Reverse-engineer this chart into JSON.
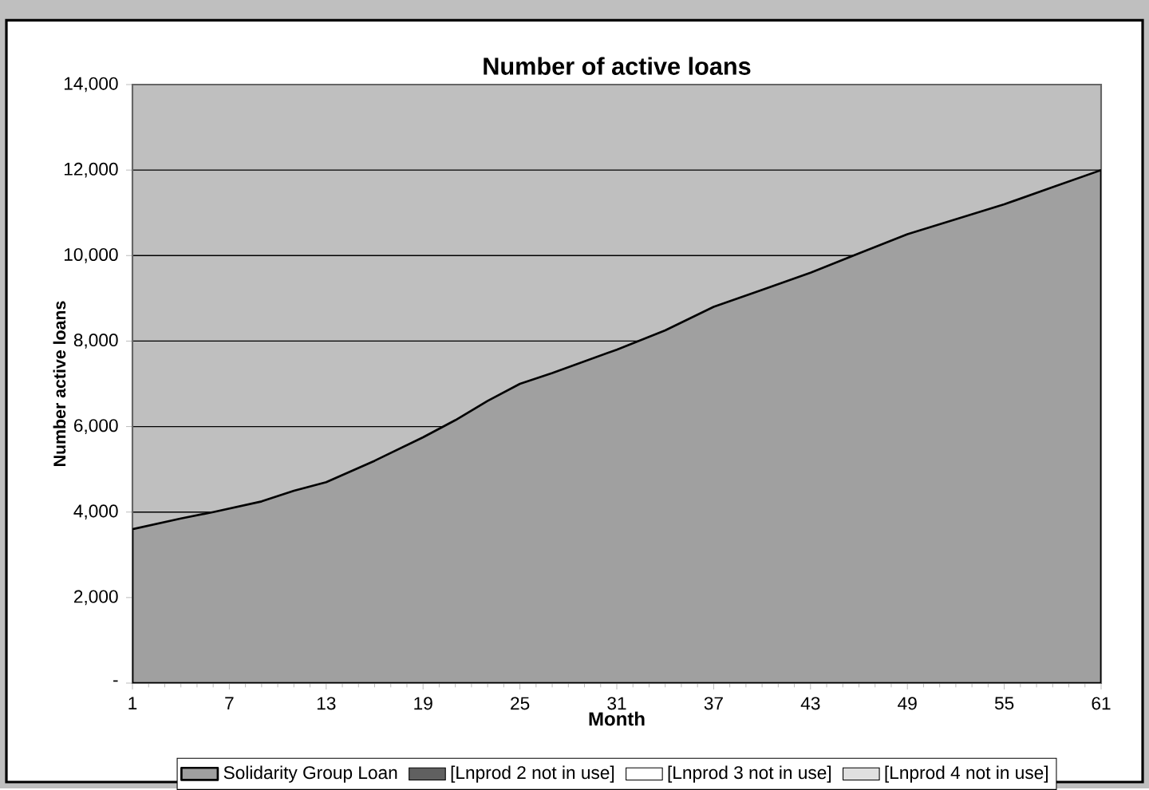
{
  "chart_data": {
    "type": "area",
    "title": "Number of active loans",
    "xlabel": "Month",
    "ylabel": "Number active loans",
    "grid": "y",
    "legend": "bottom",
    "x": [
      1,
      4,
      6,
      9,
      11,
      13,
      16,
      19,
      21,
      23,
      25,
      27,
      31,
      34,
      37,
      40,
      43,
      46,
      49,
      55,
      58,
      61
    ],
    "xlim": [
      1,
      61
    ],
    "xticks": [
      1,
      7,
      13,
      19,
      25,
      31,
      37,
      43,
      49,
      55,
      61
    ],
    "ylim": [
      0,
      14000
    ],
    "yticks": [
      {
        "value": 0,
        "label": "-"
      },
      {
        "value": 2000,
        "label": "2,000"
      },
      {
        "value": 4000,
        "label": "4,000"
      },
      {
        "value": 6000,
        "label": "6,000"
      },
      {
        "value": 8000,
        "label": "8,000"
      },
      {
        "value": 10000,
        "label": "10,000"
      },
      {
        "value": 12000,
        "label": "12,000"
      },
      {
        "value": 14000,
        "label": "14,000"
      }
    ],
    "series": [
      {
        "name": "Solidarity Group Loan",
        "color": "#a0a0a0",
        "values": [
          3600,
          3850,
          4000,
          4250,
          4500,
          4700,
          5200,
          5750,
          6150,
          6600,
          7000,
          7250,
          7800,
          8250,
          8800,
          9200,
          9600,
          10050,
          10500,
          11200,
          11600,
          12000
        ]
      },
      {
        "name": "[Lnprod 2 not in use]",
        "color": "#606060",
        "values": [
          null,
          null,
          null,
          null,
          null,
          null,
          null,
          null,
          null,
          null,
          null,
          null,
          null,
          null,
          null,
          null,
          null,
          null,
          null,
          null,
          null,
          null
        ]
      },
      {
        "name": "[Lnprod 3 not in use]",
        "color": "#ffffff",
        "values": [
          null,
          null,
          null,
          null,
          null,
          null,
          null,
          null,
          null,
          null,
          null,
          null,
          null,
          null,
          null,
          null,
          null,
          null,
          null,
          null,
          null,
          null
        ]
      },
      {
        "name": "[Lnprod 4 not in use]",
        "color": "#e0e0e0",
        "values": [
          null,
          null,
          null,
          null,
          null,
          null,
          null,
          null,
          null,
          null,
          null,
          null,
          null,
          null,
          null,
          null,
          null,
          null,
          null,
          null,
          null,
          null
        ]
      }
    ]
  }
}
